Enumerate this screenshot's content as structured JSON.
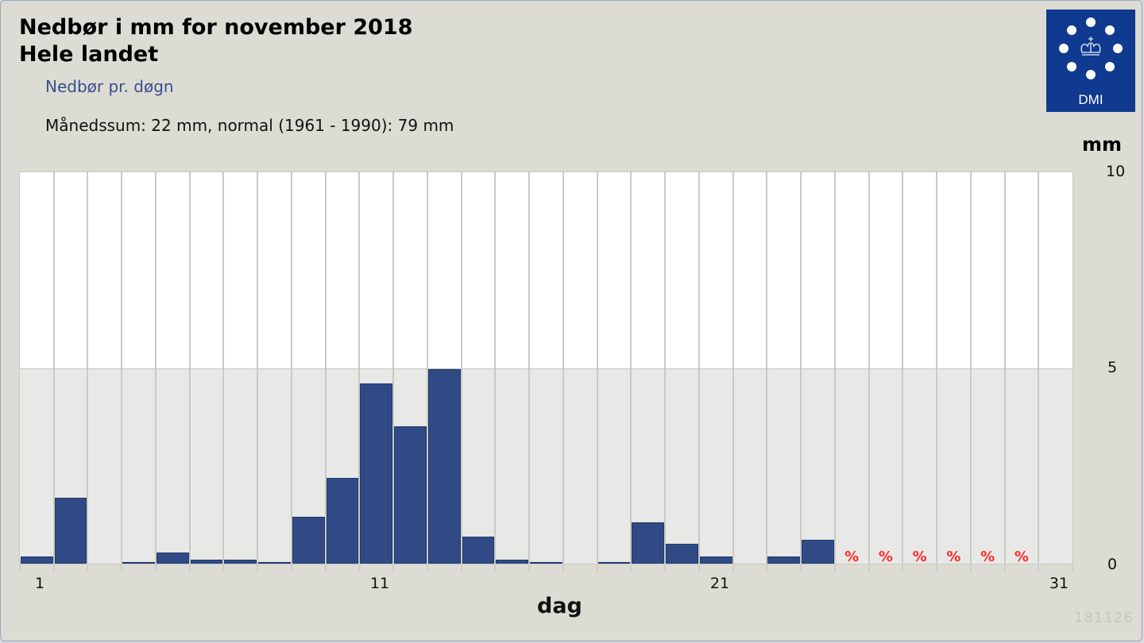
{
  "header": {
    "title_line1": "Nedbør i mm for november 2018",
    "title_line2": "Hele landet",
    "subtitle": "Nedbør pr. døgn",
    "summary": "Månedssum: 22 mm, normal (1961 - 1990): 79 mm"
  },
  "logo": {
    "text": "DMI",
    "background": "#0f3a8f",
    "icon": "crown-icon"
  },
  "axis": {
    "y_unit": "mm",
    "y_ticks": [
      "10",
      "5",
      "0"
    ],
    "x_ticks": [
      "1",
      "11",
      "21",
      "31"
    ],
    "x_label": "dag"
  },
  "stamp": "181126",
  "colors": {
    "bar": "#2f4a85",
    "missing_marker": "#ff2a2a",
    "upper_band": "#ffffff",
    "lower_band": "#e8e9e6"
  },
  "chart_data": {
    "type": "bar",
    "title": "Nedbør i mm for november 2018 — Hele landet",
    "subtitle": "Nedbør pr. døgn",
    "annotation": "Månedssum: 22 mm, normal (1961 - 1990): 79 mm",
    "xlabel": "dag",
    "ylabel": "mm",
    "ylim": [
      0,
      10
    ],
    "y_ticks": [
      0,
      5,
      10
    ],
    "x_ticks": [
      1,
      11,
      21,
      31
    ],
    "grid": true,
    "categories": [
      1,
      2,
      3,
      4,
      5,
      6,
      7,
      8,
      9,
      10,
      11,
      12,
      13,
      14,
      15,
      16,
      17,
      18,
      19,
      20,
      21,
      22,
      23,
      24,
      25,
      26,
      27,
      28,
      29,
      30,
      31
    ],
    "values": [
      0.18,
      1.68,
      0,
      0.05,
      0.28,
      0.1,
      0.1,
      0.05,
      1.2,
      2.2,
      4.6,
      3.5,
      4.96,
      0.68,
      0.1,
      0.05,
      0,
      0.05,
      1.05,
      0.5,
      0.18,
      0,
      0.18,
      0.6,
      null,
      null,
      null,
      null,
      null,
      null,
      null
    ],
    "missing_marker": "%",
    "missing_days": [
      25,
      26,
      27,
      28,
      29,
      30
    ]
  }
}
